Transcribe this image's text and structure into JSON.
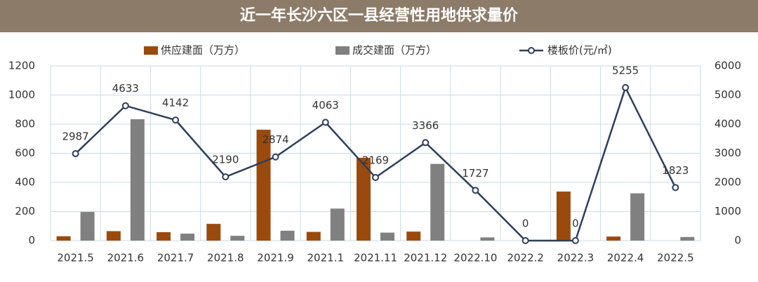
{
  "chart_data": {
    "type": "bar-line",
    "title": "近一年长沙六区一县经营性用地供求量价",
    "categories": [
      "2021.5",
      "2021.6",
      "2021.7",
      "2021.8",
      "2021.9",
      "2021.1",
      "2021.11",
      "2021.12",
      "2022.10",
      "2022.2",
      "2022.3",
      "2022.4",
      "2022.5"
    ],
    "series": [
      {
        "name": "供应建面（万方）",
        "color": "#9b4a0e",
        "type": "bar",
        "values": [
          30,
          65,
          58,
          115,
          762,
          60,
          569,
          62,
          0,
          0,
          337,
          28,
          0
        ]
      },
      {
        "name": "成交建面（万方）",
        "color": "#808080",
        "type": "bar",
        "values": [
          197,
          834,
          48,
          33,
          68,
          220,
          55,
          527,
          22,
          0,
          0,
          325,
          25
        ]
      },
      {
        "name": "楼板价(元/㎡)",
        "color": "#2e3f5c",
        "type": "line",
        "axis": "y2",
        "values": [
          2987,
          4633,
          4142,
          2190,
          2874,
          4063,
          2169,
          3366,
          1727,
          0,
          0,
          5255,
          1823
        ]
      }
    ],
    "ylim": [
      0,
      1200
    ],
    "yticks": [
      0,
      200,
      400,
      600,
      800,
      1000,
      1200
    ],
    "y2lim": [
      0,
      6000
    ],
    "y2ticks": [
      0,
      1000,
      2000,
      3000,
      4000,
      5000,
      6000
    ],
    "grid": true,
    "legend": "top"
  }
}
